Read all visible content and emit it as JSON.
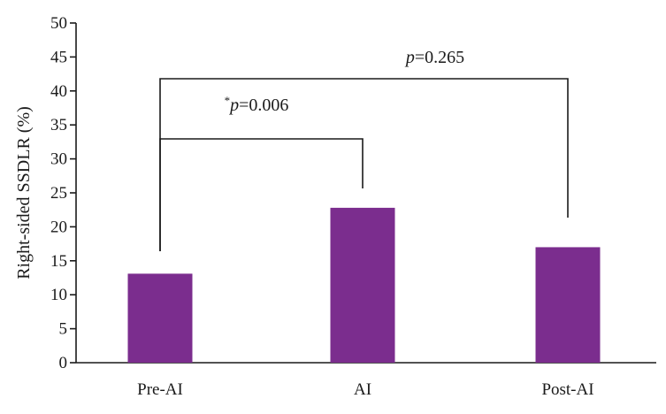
{
  "chart_data": {
    "type": "bar",
    "categories": [
      "Pre-AI",
      "AI",
      "Post-AI"
    ],
    "values": [
      13.1,
      22.8,
      17.0
    ],
    "ylabel": "Right-sided SSDLR (%)",
    "xlabel": "",
    "ylim": [
      0,
      50
    ],
    "yticks": [
      0,
      5,
      10,
      15,
      20,
      25,
      30,
      35,
      40,
      45,
      50
    ],
    "bar_color": "#7b2d8e",
    "grid": false,
    "annotations": [
      {
        "from": "Pre-AI",
        "to": "AI",
        "star": "*",
        "p": "p",
        "value": "=0.006"
      },
      {
        "from": "Pre-AI",
        "to": "Post-AI",
        "star": "",
        "p": "p",
        "value": "=0.265"
      }
    ]
  }
}
